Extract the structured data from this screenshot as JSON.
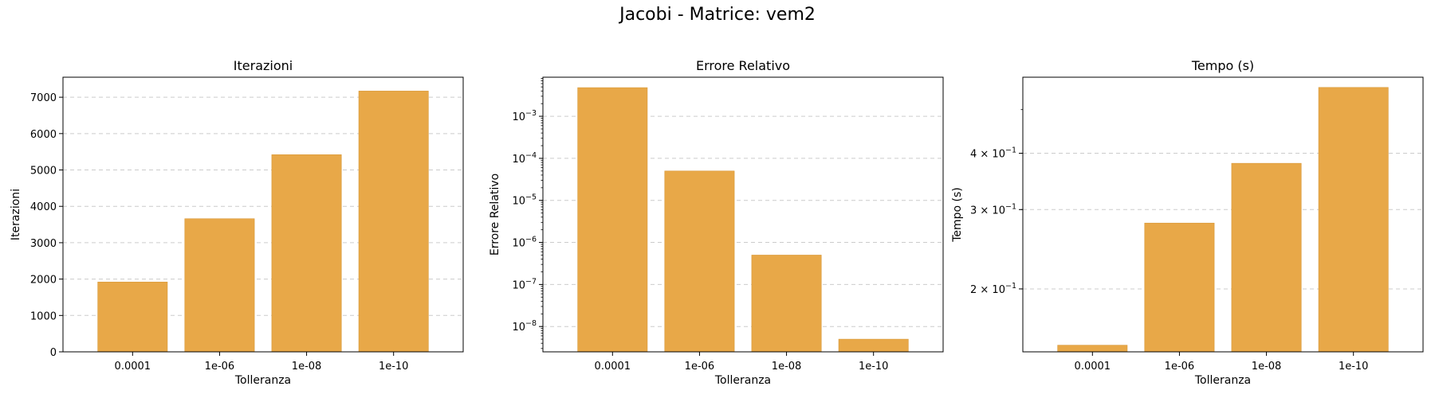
{
  "suptitle": "Jacobi - Matrice: vem2",
  "bar_color": "#E8A848",
  "bar_edge_color": "#D89838",
  "grid_color": "#cccccc",
  "chart_data": [
    {
      "type": "bar",
      "title": "Iterazioni",
      "xlabel": "Tolleranza",
      "ylabel": "Iterazioni",
      "categories": [
        "0.0001",
        "1e-06",
        "1e-08",
        "1e-10"
      ],
      "values": [
        1920,
        3660,
        5420,
        7170
      ],
      "yscale": "linear",
      "ylim": [
        0,
        7550
      ],
      "yticks": [
        0,
        1000,
        2000,
        3000,
        4000,
        5000,
        6000,
        7000
      ],
      "ytick_labels": [
        "0",
        "1000",
        "2000",
        "3000",
        "4000",
        "5000",
        "6000",
        "7000"
      ],
      "grid": "y-dashed"
    },
    {
      "type": "bar",
      "title": "Errore Relativo",
      "xlabel": "Tolleranza",
      "ylabel": "Errore Relativo",
      "categories": [
        "0.0001",
        "1e-06",
        "1e-08",
        "1e-10"
      ],
      "values": [
        0.0048,
        5e-05,
        5e-07,
        5e-09
      ],
      "yscale": "log",
      "ylim": [
        2.5e-09,
        0.0085
      ],
      "yticks": [
        1e-08,
        1e-07,
        1e-06,
        1e-05,
        0.0001,
        0.001
      ],
      "ytick_labels": [
        {
          "base": "10",
          "exp": "−8"
        },
        {
          "base": "10",
          "exp": "−7"
        },
        {
          "base": "10",
          "exp": "−6"
        },
        {
          "base": "10",
          "exp": "−5"
        },
        {
          "base": "10",
          "exp": "−4"
        },
        {
          "base": "10",
          "exp": "−3"
        }
      ],
      "grid": "y-dashed"
    },
    {
      "type": "bar",
      "title": "Tempo (s)",
      "xlabel": "Tolleranza",
      "ylabel": "Tempo (s)",
      "categories": [
        "0.0001",
        "1e-06",
        "1e-08",
        "1e-10"
      ],
      "values": [
        0.15,
        0.28,
        0.38,
        0.56
      ],
      "yscale": "log",
      "ylim": [
        0.145,
        0.59
      ],
      "yticks": [
        0.2,
        0.3,
        0.4
      ],
      "ytick_labels": [
        {
          "base": "2 × 10",
          "exp": "−1"
        },
        {
          "base": "3 × 10",
          "exp": "−1"
        },
        {
          "base": "4 × 10",
          "exp": "−1"
        }
      ],
      "grid": "y-dashed"
    }
  ]
}
